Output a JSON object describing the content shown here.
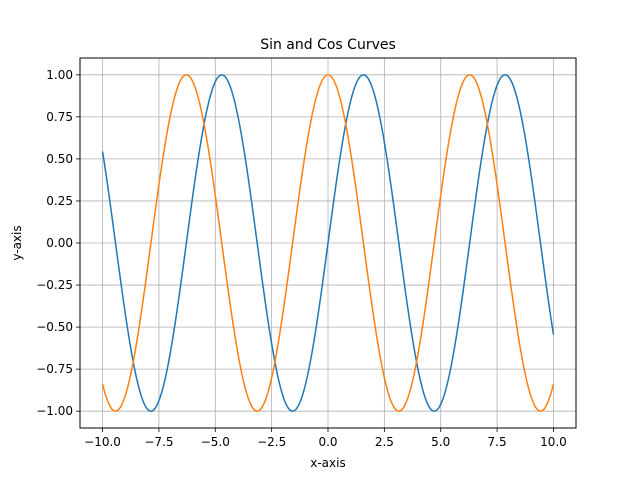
{
  "chart_data": {
    "type": "line",
    "title": "Sin and Cos Curves",
    "xlabel": "x-axis",
    "ylabel": "y-axis",
    "xlim": [
      -11.0,
      11.0
    ],
    "ylim": [
      -1.1,
      1.1
    ],
    "xticks": [
      -10.0,
      -7.5,
      -5.0,
      -2.5,
      0.0,
      2.5,
      5.0,
      7.5,
      10.0
    ],
    "xtick_labels": [
      "−10.0",
      "−7.5",
      "−5.0",
      "−2.5",
      "0.0",
      "2.5",
      "5.0",
      "7.5",
      "10.0"
    ],
    "yticks": [
      -1.0,
      -0.75,
      -0.5,
      -0.25,
      0.0,
      0.25,
      0.5,
      0.75,
      1.0
    ],
    "ytick_labels": [
      "−1.00",
      "−0.75",
      "−0.50",
      "−0.25",
      "0.00",
      "0.25",
      "0.50",
      "0.75",
      "1.00"
    ],
    "grid": true,
    "legend": "none",
    "x_range": [
      -10,
      10
    ],
    "series": [
      {
        "function": "sin",
        "color": "#1f77b4"
      },
      {
        "function": "cos",
        "color": "#ff7f0e"
      }
    ]
  }
}
